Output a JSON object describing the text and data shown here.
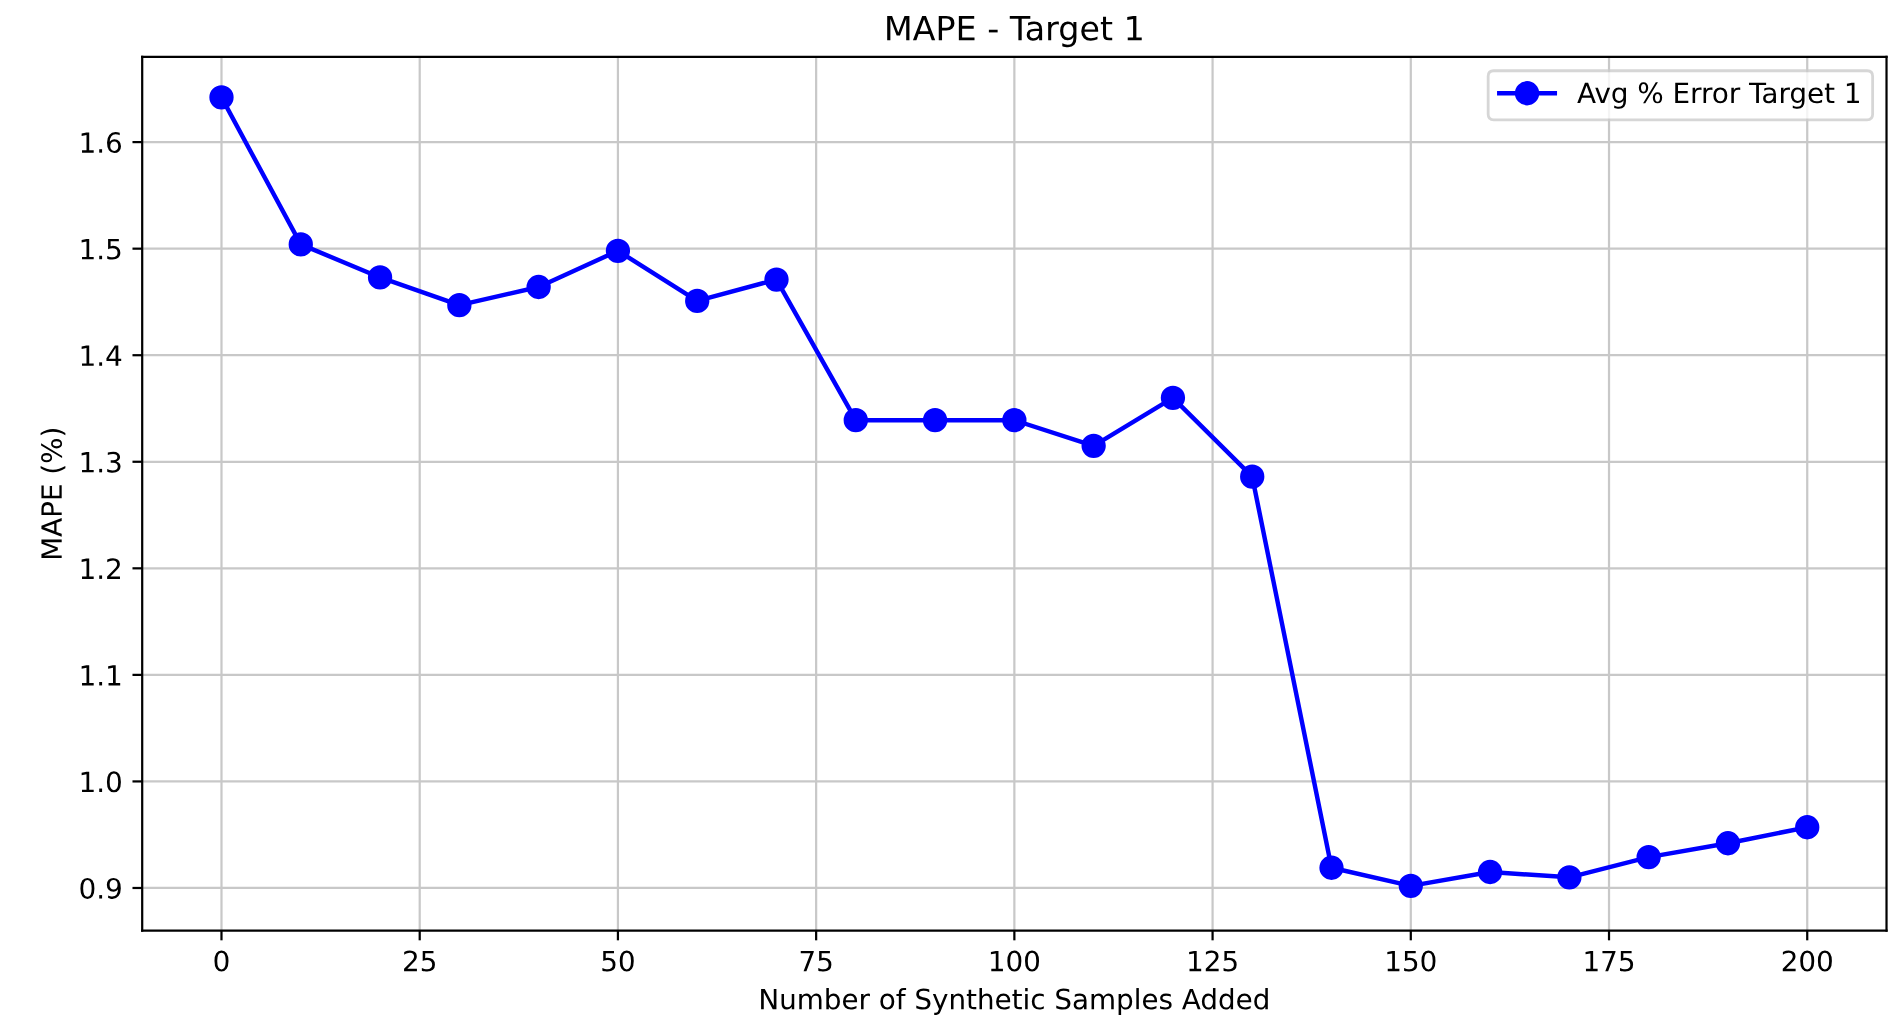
{
  "chart_data": {
    "type": "line",
    "title": "MAPE - Target 1",
    "xlabel": "Number of Synthetic Samples Added",
    "ylabel": "MAPE (%)",
    "x": [
      0,
      10,
      20,
      30,
      40,
      50,
      60,
      70,
      80,
      90,
      100,
      110,
      120,
      130,
      140,
      150,
      160,
      170,
      180,
      190,
      200
    ],
    "series": [
      {
        "name": "Avg % Error Target 1",
        "color": "#0000ff",
        "values": [
          1.642,
          1.504,
          1.473,
          1.447,
          1.464,
          1.498,
          1.451,
          1.471,
          1.339,
          1.339,
          1.339,
          1.315,
          1.36,
          1.286,
          0.919,
          0.902,
          0.915,
          0.91,
          0.929,
          0.942,
          0.957
        ]
      }
    ],
    "xlim": [
      -10,
      210
    ],
    "xticks": [
      0,
      25,
      50,
      75,
      100,
      125,
      150,
      175,
      200
    ],
    "ylim": [
      0.86,
      1.68
    ],
    "yticks": [
      {
        "value": 0.9,
        "label": "0.9"
      },
      {
        "value": 1.0,
        "label": "1.0"
      },
      {
        "value": 1.1,
        "label": "1.1"
      },
      {
        "value": 1.2,
        "label": "1.2"
      },
      {
        "value": 1.3,
        "label": "1.3"
      },
      {
        "value": 1.4,
        "label": "1.4"
      },
      {
        "value": 1.5,
        "label": "1.5"
      },
      {
        "value": 1.6,
        "label": "1.6"
      }
    ],
    "grid": true,
    "legend": "top right",
    "marker": "circle",
    "line_style": "solid"
  }
}
